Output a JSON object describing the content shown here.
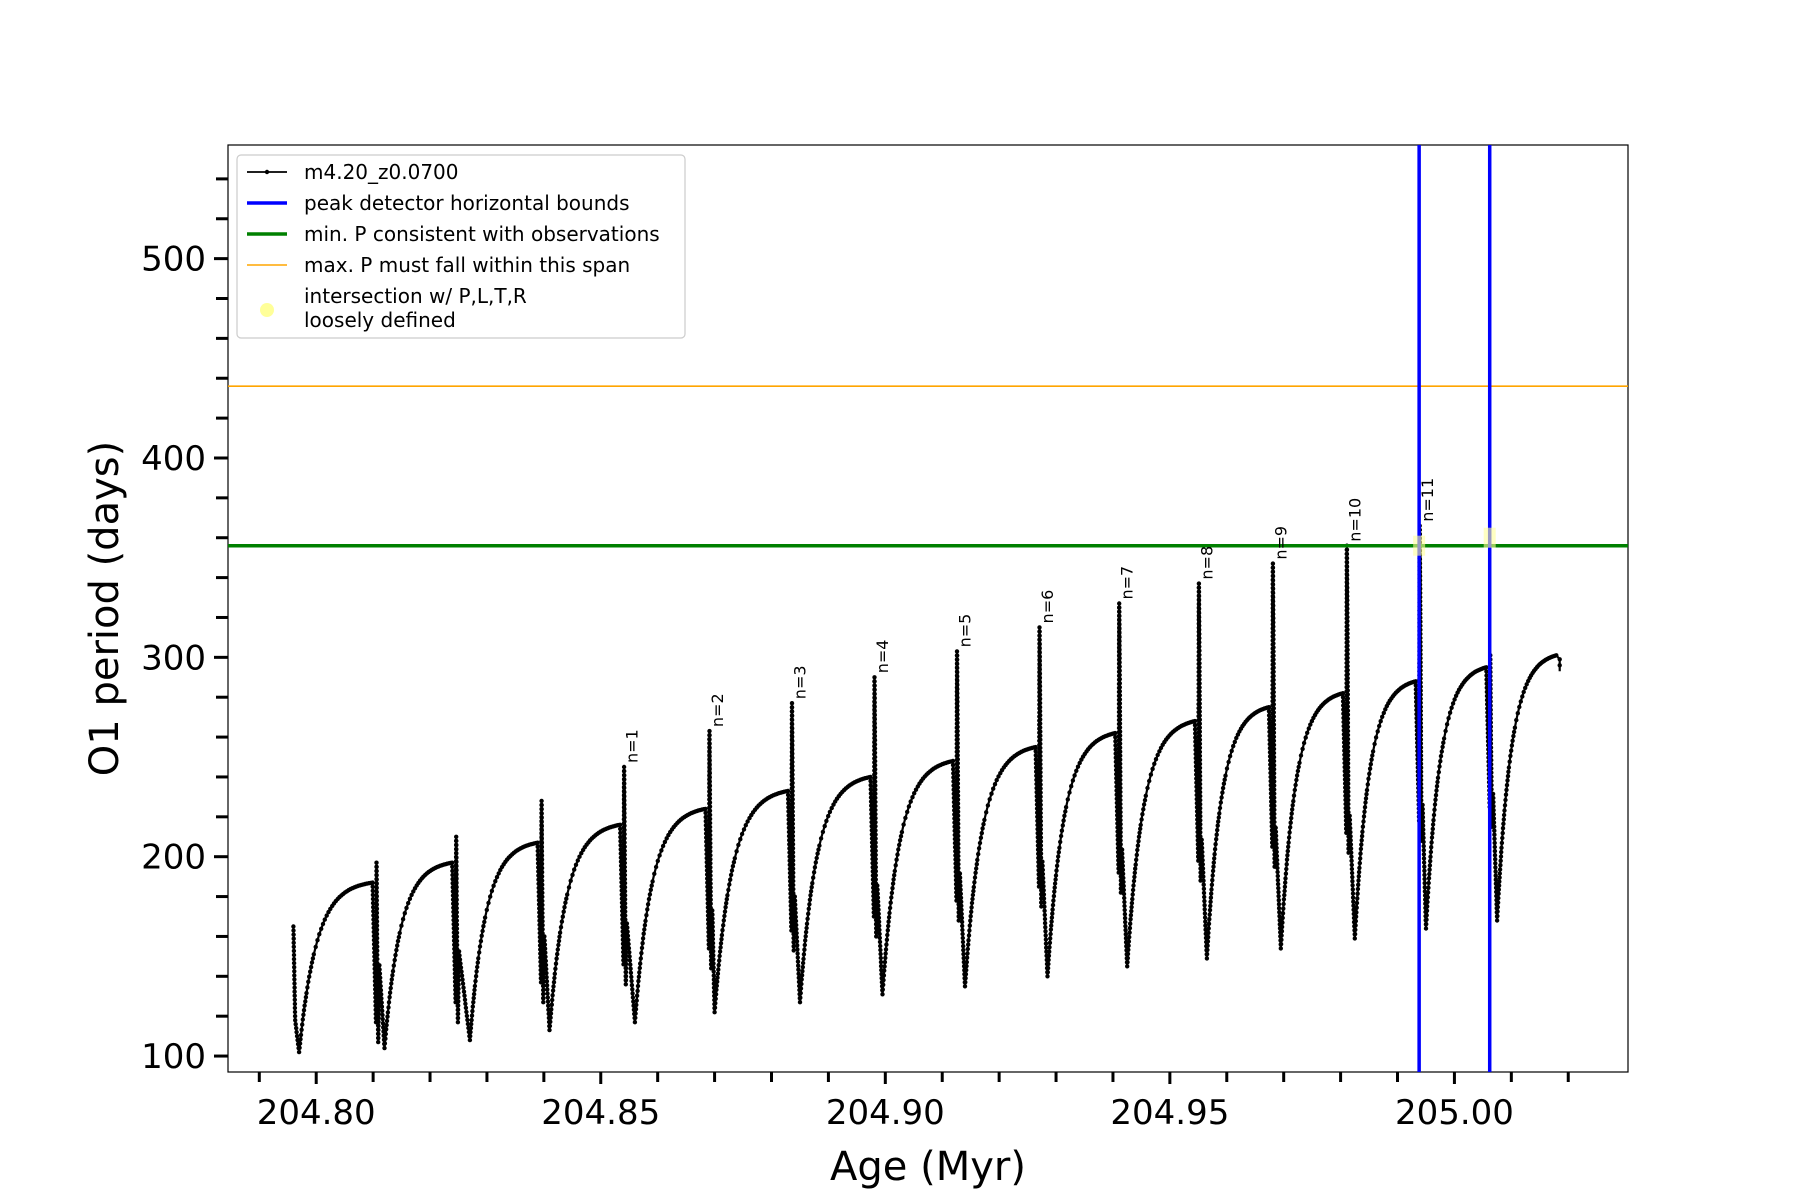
{
  "chart_data": {
    "type": "line",
    "title": "",
    "xlabel": "Age (Myr)",
    "ylabel": "O1 period (days)",
    "xlim": [
      204.7845,
      205.0305
    ],
    "ylim": [
      92,
      557
    ],
    "xticks_major": [
      "204.80",
      "204.85",
      "204.90",
      "204.95",
      "205.00"
    ],
    "xtick_values": [
      204.8,
      204.85,
      204.9,
      204.95,
      205.0
    ],
    "xticks_minor_step": 0.01,
    "yticks_major": [
      "100",
      "200",
      "300",
      "400",
      "500"
    ],
    "ytick_values": [
      100,
      200,
      300,
      400,
      500
    ],
    "yticks_minor_step": 20,
    "grid": false,
    "legend_position": "top-left",
    "legend": [
      {
        "label": "m4.20_z0.0700",
        "color": "#000000",
        "style": "line-marker"
      },
      {
        "label": "peak detector horizontal bounds",
        "color": "#0000ff",
        "style": "thick-line"
      },
      {
        "label": "min. P consistent with observations",
        "color": "#008000",
        "style": "thick-line"
      },
      {
        "label": "max. P must fall within this span",
        "color": "#ffa500",
        "style": "thin-line"
      },
      {
        "label": "intersection w/ P,L,T,R",
        "label2": "loosely defined",
        "color": "#ffff99",
        "style": "dot"
      }
    ],
    "horizontal_lines": [
      {
        "name": "min. P consistent with observations",
        "y": 356,
        "color": "#008000"
      },
      {
        "name": "max. P must fall within this span",
        "y": 436,
        "color": "#ffa500"
      }
    ],
    "vertical_lines": [
      {
        "name": "peak detector horizontal bounds",
        "x": 204.9938,
        "color": "#0000ff"
      },
      {
        "name": "peak detector horizontal bounds",
        "x": 205.0062,
        "color": "#0000ff"
      }
    ],
    "intersections": [
      {
        "x": 204.9938,
        "y": 356
      },
      {
        "x": 205.0062,
        "y": 360
      }
    ],
    "series": [
      {
        "name": "m4.20_z0.0700",
        "color": "#000000",
        "start": {
          "x": 204.796,
          "y": 165
        },
        "end": {
          "x": 205.0185,
          "y": 293
        },
        "pulses": [
          {
            "x_start": 204.796,
            "min": 102,
            "x_min": 204.797,
            "plateau": 187,
            "x_drop": 204.8105,
            "spike": 187
          },
          {
            "x_drop": 204.8105,
            "min": 104,
            "x_min": 204.812,
            "plateau": 197,
            "x_next": 204.8245,
            "spike": 197
          },
          {
            "x_drop": 204.8245,
            "min": 108,
            "x_min": 204.827,
            "plateau": 207,
            "x_next": 204.8395,
            "spike": 210
          },
          {
            "x_drop": 204.8395,
            "min": 113,
            "x_min": 204.841,
            "plateau": 216,
            "x_next": 204.854,
            "spike": 228
          },
          {
            "x_drop": 204.854,
            "min": 117,
            "x_min": 204.856,
            "plateau": 224,
            "x_next": 204.869,
            "spike": 245,
            "label": "n=1"
          },
          {
            "x_drop": 204.869,
            "min": 122,
            "x_min": 204.87,
            "plateau": 233,
            "x_next": 204.8835,
            "spike": 263,
            "label": "n=2"
          },
          {
            "x_drop": 204.8835,
            "min": 127,
            "x_min": 204.885,
            "plateau": 240,
            "x_next": 204.898,
            "spike": 277,
            "label": "n=3"
          },
          {
            "x_drop": 204.898,
            "min": 131,
            "x_min": 204.8995,
            "plateau": 248,
            "x_next": 204.9125,
            "spike": 290,
            "label": "n=4"
          },
          {
            "x_drop": 204.9125,
            "min": 135,
            "x_min": 204.914,
            "plateau": 255,
            "x_next": 204.927,
            "spike": 303,
            "label": "n=5"
          },
          {
            "x_drop": 204.927,
            "min": 140,
            "x_min": 204.9285,
            "plateau": 262,
            "x_next": 204.941,
            "spike": 315,
            "label": "n=6"
          },
          {
            "x_drop": 204.941,
            "min": 145,
            "x_min": 204.9425,
            "plateau": 268,
            "x_next": 204.955,
            "spike": 327,
            "label": "n=7"
          },
          {
            "x_drop": 204.955,
            "min": 149,
            "x_min": 204.9565,
            "plateau": 275,
            "x_next": 204.968,
            "spike": 337,
            "label": "n=8"
          },
          {
            "x_drop": 204.968,
            "min": 154,
            "x_min": 204.9695,
            "plateau": 282,
            "x_next": 204.981,
            "spike": 347,
            "label": "n=9"
          },
          {
            "x_drop": 204.981,
            "min": 159,
            "x_min": 204.9825,
            "plateau": 288,
            "x_next": 204.9938,
            "spike": 356,
            "label": "n=10"
          },
          {
            "x_drop": 204.9938,
            "min": 164,
            "x_min": 204.995,
            "plateau": 295,
            "x_next": 205.0062,
            "spike": 366,
            "label": "n=11"
          },
          {
            "x_drop": 205.0062,
            "min": 168,
            "x_min": 205.0075,
            "plateau": 301,
            "x_next": 205.0185,
            "spike": 301
          }
        ]
      }
    ]
  }
}
